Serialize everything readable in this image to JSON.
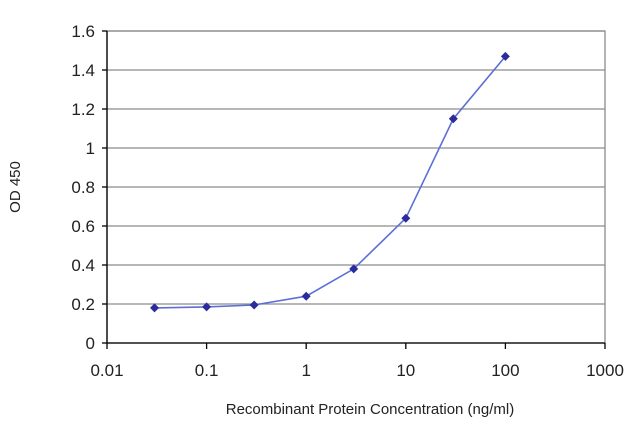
{
  "chart_data": {
    "type": "line",
    "title": "",
    "xlabel": "Recombinant Protein Concentration (ng/ml)",
    "ylabel": "OD 450",
    "x_scale": "log",
    "xlim": [
      0.01,
      1000
    ],
    "ylim": [
      0,
      1.6
    ],
    "x_ticks": [
      "0.01",
      "0.1",
      "1",
      "10",
      "100",
      "1000"
    ],
    "x_tick_values": [
      0.01,
      0.1,
      1,
      10,
      100,
      1000
    ],
    "y_ticks": [
      "0",
      "0.2",
      "0.4",
      "0.6",
      "0.8",
      "1",
      "1.2",
      "1.4",
      "1.6"
    ],
    "y_tick_values": [
      0,
      0.2,
      0.4,
      0.6,
      0.8,
      1.0,
      1.2,
      1.4,
      1.6
    ],
    "grid": true,
    "legend": "none",
    "series": [
      {
        "x": [
          0.03,
          0.1,
          0.3,
          1,
          3,
          10,
          30,
          100
        ],
        "y": [
          0.18,
          0.185,
          0.195,
          0.24,
          0.38,
          0.64,
          1.15,
          1.47
        ],
        "color": "#2b2b9e",
        "line_color": "#5b6fd6",
        "marker": "diamond"
      }
    ]
  }
}
